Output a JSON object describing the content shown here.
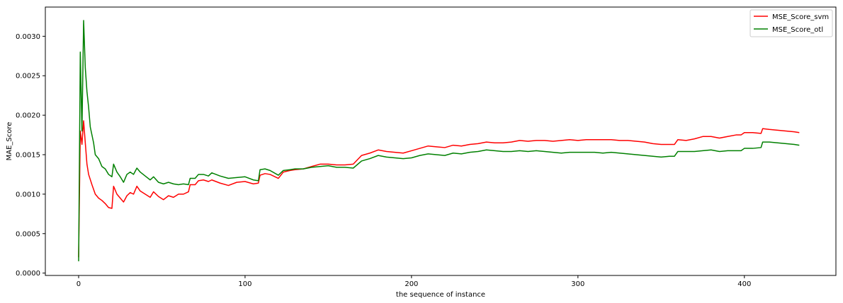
{
  "chart_data": {
    "type": "line",
    "title": "",
    "xlabel": "the sequence of instance",
    "ylabel": "MAE_Score",
    "xlim": [
      -20,
      455
    ],
    "ylim": [
      -3e-05,
      0.00337
    ],
    "xticks": [
      0,
      100,
      200,
      300,
      400
    ],
    "xtick_labels": [
      "0",
      "100",
      "200",
      "300",
      "400"
    ],
    "yticks": [
      0.0,
      0.0005,
      0.001,
      0.0015,
      0.002,
      0.0025,
      0.003
    ],
    "ytick_labels": [
      "0.0000",
      "0.0005",
      "0.0010",
      "0.0015",
      "0.0020",
      "0.0025",
      "0.0030"
    ],
    "grid": false,
    "legend_position": "top-right",
    "series": [
      {
        "name": "MSE_Score_svm",
        "color": "#ff0000",
        "points": [
          [
            0,
            0.0002
          ],
          [
            1,
            0.0018
          ],
          [
            2,
            0.00163
          ],
          [
            3,
            0.00193
          ],
          [
            4,
            0.00165
          ],
          [
            5,
            0.00138
          ],
          [
            6,
            0.00125
          ],
          [
            8,
            0.00112
          ],
          [
            10,
            0.001
          ],
          [
            12,
            0.00095
          ],
          [
            14,
            0.00092
          ],
          [
            16,
            0.00088
          ],
          [
            18,
            0.00083
          ],
          [
            20,
            0.00082
          ],
          [
            21,
            0.0011
          ],
          [
            23,
            0.001
          ],
          [
            25,
            0.00095
          ],
          [
            27,
            0.0009
          ],
          [
            29,
            0.00098
          ],
          [
            31,
            0.00102
          ],
          [
            33,
            0.001
          ],
          [
            35,
            0.0011
          ],
          [
            37,
            0.00104
          ],
          [
            40,
            0.001
          ],
          [
            43,
            0.00096
          ],
          [
            45,
            0.00103
          ],
          [
            48,
            0.00097
          ],
          [
            51,
            0.00093
          ],
          [
            54,
            0.00098
          ],
          [
            57,
            0.00096
          ],
          [
            60,
            0.001
          ],
          [
            63,
            0.001
          ],
          [
            66,
            0.00103
          ],
          [
            67,
            0.00112
          ],
          [
            70,
            0.00112
          ],
          [
            72,
            0.00117
          ],
          [
            75,
            0.00118
          ],
          [
            78,
            0.00116
          ],
          [
            80,
            0.00118
          ],
          [
            85,
            0.00114
          ],
          [
            90,
            0.00111
          ],
          [
            95,
            0.00115
          ],
          [
            100,
            0.00116
          ],
          [
            105,
            0.00113
          ],
          [
            108,
            0.00114
          ],
          [
            109,
            0.00124
          ],
          [
            112,
            0.00126
          ],
          [
            115,
            0.00125
          ],
          [
            120,
            0.0012
          ],
          [
            123,
            0.00128
          ],
          [
            127,
            0.0013
          ],
          [
            130,
            0.00131
          ],
          [
            135,
            0.00132
          ],
          [
            140,
            0.00135
          ],
          [
            145,
            0.00138
          ],
          [
            150,
            0.00138
          ],
          [
            155,
            0.00137
          ],
          [
            160,
            0.00137
          ],
          [
            165,
            0.00138
          ],
          [
            170,
            0.00149
          ],
          [
            175,
            0.00152
          ],
          [
            180,
            0.00156
          ],
          [
            185,
            0.00154
          ],
          [
            190,
            0.00153
          ],
          [
            195,
            0.00152
          ],
          [
            200,
            0.00155
          ],
          [
            205,
            0.00158
          ],
          [
            210,
            0.00161
          ],
          [
            215,
            0.0016
          ],
          [
            220,
            0.00159
          ],
          [
            225,
            0.00162
          ],
          [
            230,
            0.00161
          ],
          [
            235,
            0.00163
          ],
          [
            240,
            0.00164
          ],
          [
            245,
            0.00166
          ],
          [
            250,
            0.00165
          ],
          [
            255,
            0.00165
          ],
          [
            260,
            0.00166
          ],
          [
            265,
            0.00168
          ],
          [
            270,
            0.00167
          ],
          [
            275,
            0.00168
          ],
          [
            280,
            0.00168
          ],
          [
            285,
            0.00167
          ],
          [
            290,
            0.00168
          ],
          [
            295,
            0.00169
          ],
          [
            300,
            0.00168
          ],
          [
            305,
            0.00169
          ],
          [
            310,
            0.00169
          ],
          [
            315,
            0.00169
          ],
          [
            320,
            0.00169
          ],
          [
            325,
            0.00168
          ],
          [
            330,
            0.00168
          ],
          [
            335,
            0.00167
          ],
          [
            340,
            0.00166
          ],
          [
            345,
            0.00164
          ],
          [
            350,
            0.00163
          ],
          [
            355,
            0.00163
          ],
          [
            358,
            0.00163
          ],
          [
            360,
            0.00169
          ],
          [
            365,
            0.00168
          ],
          [
            370,
            0.0017
          ],
          [
            375,
            0.00173
          ],
          [
            380,
            0.00173
          ],
          [
            385,
            0.00171
          ],
          [
            390,
            0.00173
          ],
          [
            395,
            0.00175
          ],
          [
            398,
            0.00175
          ],
          [
            400,
            0.00178
          ],
          [
            405,
            0.00178
          ],
          [
            410,
            0.00177
          ],
          [
            411,
            0.00183
          ],
          [
            415,
            0.00182
          ],
          [
            420,
            0.00181
          ],
          [
            425,
            0.0018
          ],
          [
            430,
            0.00179
          ],
          [
            433,
            0.00178
          ]
        ]
      },
      {
        "name": "MSE_Score_otl",
        "color": "#008000",
        "points": [
          [
            0,
            0.00015
          ],
          [
            1,
            0.0028
          ],
          [
            2,
            0.0018
          ],
          [
            3,
            0.0032
          ],
          [
            4,
            0.0026
          ],
          [
            5,
            0.0023
          ],
          [
            6,
            0.0021
          ],
          [
            7,
            0.00185
          ],
          [
            9,
            0.00165
          ],
          [
            10,
            0.0015
          ],
          [
            12,
            0.00145
          ],
          [
            14,
            0.00135
          ],
          [
            16,
            0.00132
          ],
          [
            18,
            0.00125
          ],
          [
            20,
            0.00122
          ],
          [
            21,
            0.00138
          ],
          [
            23,
            0.00128
          ],
          [
            25,
            0.00122
          ],
          [
            27,
            0.00115
          ],
          [
            29,
            0.00125
          ],
          [
            31,
            0.00128
          ],
          [
            33,
            0.00125
          ],
          [
            35,
            0.00133
          ],
          [
            37,
            0.00128
          ],
          [
            40,
            0.00123
          ],
          [
            43,
            0.00118
          ],
          [
            45,
            0.00122
          ],
          [
            48,
            0.00115
          ],
          [
            51,
            0.00113
          ],
          [
            54,
            0.00115
          ],
          [
            57,
            0.00113
          ],
          [
            60,
            0.00112
          ],
          [
            63,
            0.00113
          ],
          [
            66,
            0.00112
          ],
          [
            67,
            0.0012
          ],
          [
            70,
            0.0012
          ],
          [
            72,
            0.00125
          ],
          [
            75,
            0.00125
          ],
          [
            78,
            0.00123
          ],
          [
            80,
            0.00127
          ],
          [
            85,
            0.00123
          ],
          [
            90,
            0.0012
          ],
          [
            95,
            0.00121
          ],
          [
            100,
            0.00122
          ],
          [
            105,
            0.00118
          ],
          [
            108,
            0.00117
          ],
          [
            109,
            0.00131
          ],
          [
            112,
            0.00132
          ],
          [
            115,
            0.0013
          ],
          [
            120,
            0.00124
          ],
          [
            123,
            0.0013
          ],
          [
            127,
            0.00131
          ],
          [
            130,
            0.00132
          ],
          [
            135,
            0.00132
          ],
          [
            140,
            0.00134
          ],
          [
            145,
            0.00135
          ],
          [
            150,
            0.00136
          ],
          [
            155,
            0.00134
          ],
          [
            160,
            0.00134
          ],
          [
            165,
            0.00133
          ],
          [
            170,
            0.00142
          ],
          [
            175,
            0.00145
          ],
          [
            180,
            0.00149
          ],
          [
            185,
            0.00147
          ],
          [
            190,
            0.00146
          ],
          [
            195,
            0.00145
          ],
          [
            200,
            0.00146
          ],
          [
            205,
            0.00149
          ],
          [
            210,
            0.00151
          ],
          [
            215,
            0.0015
          ],
          [
            220,
            0.00149
          ],
          [
            225,
            0.00152
          ],
          [
            230,
            0.00151
          ],
          [
            235,
            0.00153
          ],
          [
            240,
            0.00154
          ],
          [
            245,
            0.00156
          ],
          [
            250,
            0.00155
          ],
          [
            255,
            0.00154
          ],
          [
            260,
            0.00154
          ],
          [
            265,
            0.00155
          ],
          [
            270,
            0.00154
          ],
          [
            275,
            0.00155
          ],
          [
            280,
            0.00154
          ],
          [
            285,
            0.00153
          ],
          [
            290,
            0.00152
          ],
          [
            295,
            0.00153
          ],
          [
            300,
            0.00153
          ],
          [
            305,
            0.00153
          ],
          [
            310,
            0.00153
          ],
          [
            315,
            0.00152
          ],
          [
            320,
            0.00153
          ],
          [
            325,
            0.00152
          ],
          [
            330,
            0.00151
          ],
          [
            335,
            0.0015
          ],
          [
            340,
            0.00149
          ],
          [
            345,
            0.00148
          ],
          [
            350,
            0.00147
          ],
          [
            355,
            0.00148
          ],
          [
            358,
            0.00148
          ],
          [
            360,
            0.00154
          ],
          [
            365,
            0.00154
          ],
          [
            370,
            0.00154
          ],
          [
            375,
            0.00155
          ],
          [
            380,
            0.00156
          ],
          [
            385,
            0.00154
          ],
          [
            390,
            0.00155
          ],
          [
            395,
            0.00155
          ],
          [
            398,
            0.00155
          ],
          [
            400,
            0.00158
          ],
          [
            405,
            0.00158
          ],
          [
            410,
            0.00159
          ],
          [
            411,
            0.00166
          ],
          [
            415,
            0.00166
          ],
          [
            420,
            0.00165
          ],
          [
            425,
            0.00164
          ],
          [
            430,
            0.00163
          ],
          [
            433,
            0.00162
          ]
        ]
      }
    ]
  }
}
